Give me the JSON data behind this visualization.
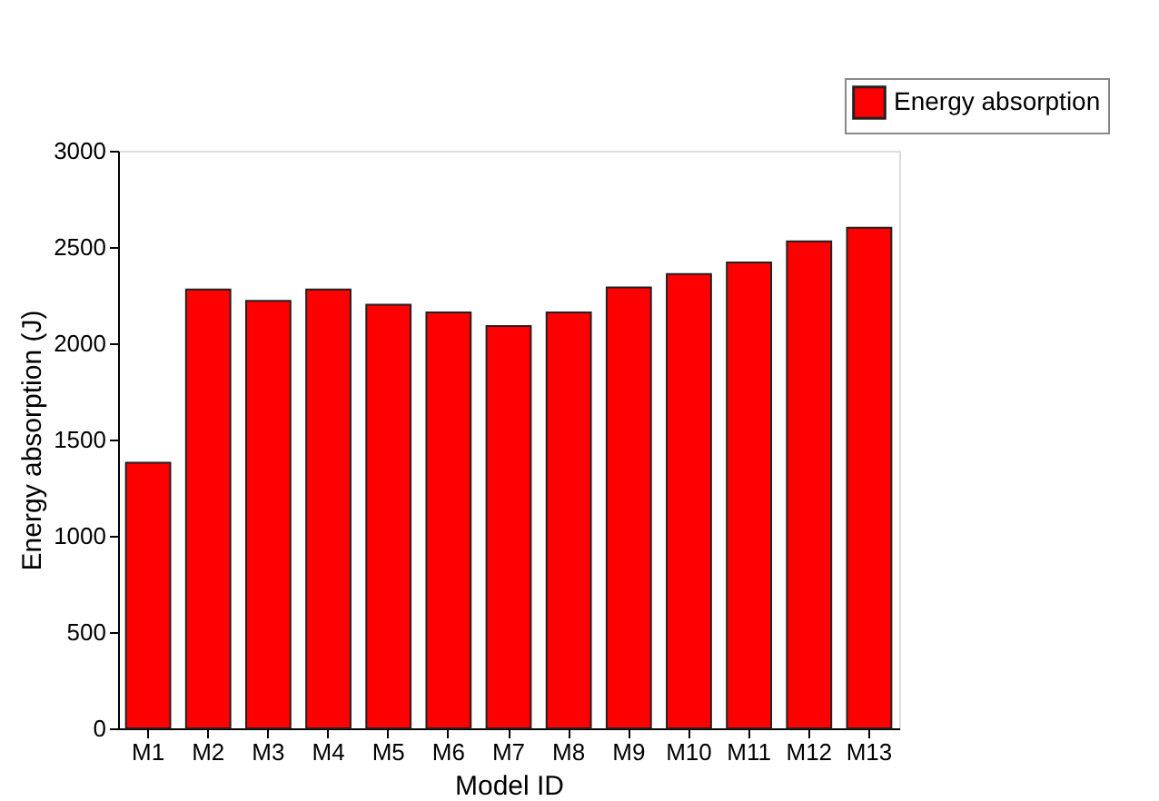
{
  "chart_data": {
    "type": "bar",
    "xlabel": "Model ID",
    "ylabel": "Energy absorption (J)",
    "categories": [
      "M1",
      "M2",
      "M3",
      "M4",
      "M5",
      "M6",
      "M7",
      "M8",
      "M9",
      "M10",
      "M11",
      "M12",
      "M13"
    ],
    "series": [
      {
        "name": "Energy absorption",
        "color": "#ff0000",
        "values": [
          1380,
          2280,
          2220,
          2280,
          2200,
          2160,
          2090,
          2160,
          2290,
          2360,
          2420,
          2530,
          2600
        ]
      }
    ],
    "ylim": [
      0,
      3000
    ],
    "yticks": [
      0,
      500,
      1000,
      1500,
      2000,
      2500,
      3000
    ],
    "grid": false,
    "legend": "top right"
  }
}
